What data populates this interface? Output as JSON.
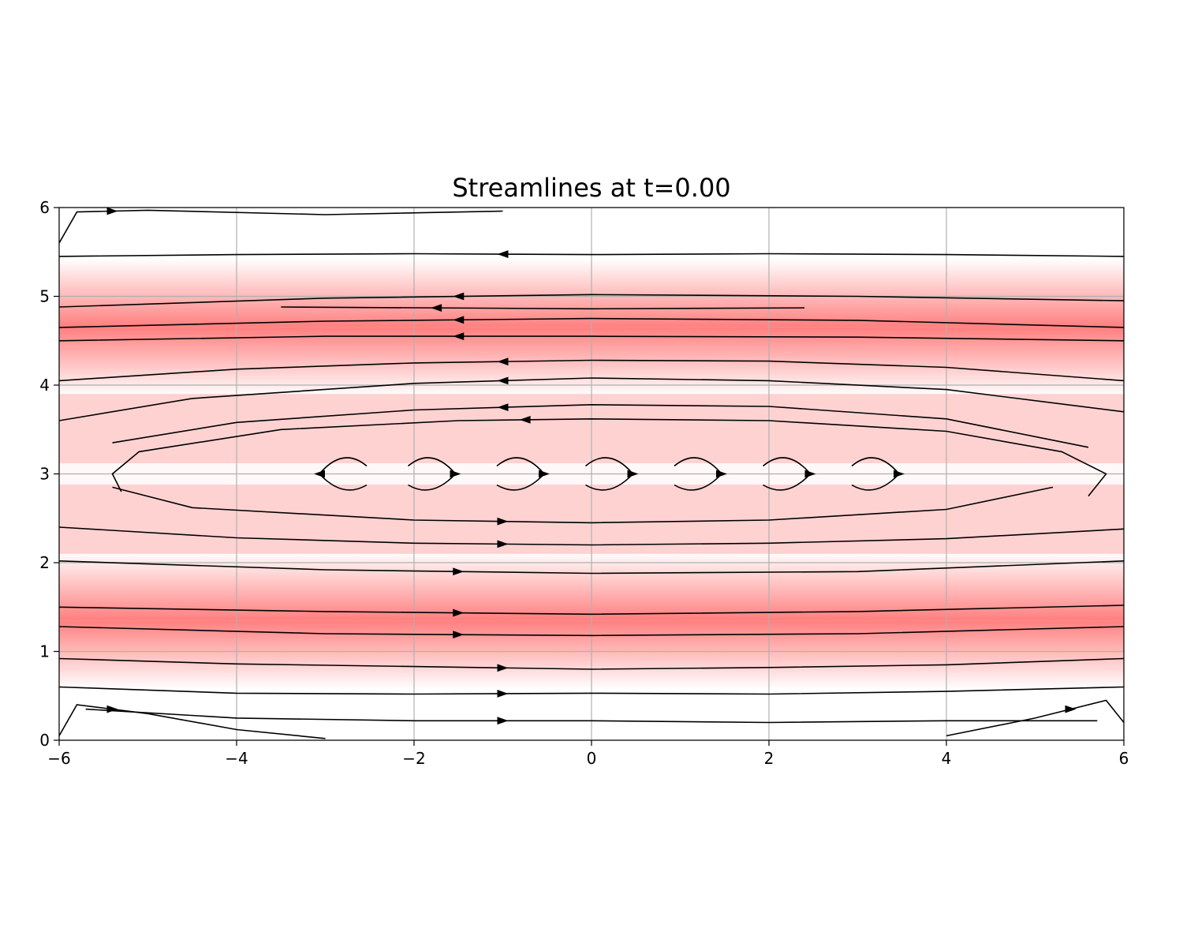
{
  "chart_data": {
    "type": "streamplot",
    "title": "Streamlines at t=0.00",
    "xlabel": "",
    "ylabel": "",
    "xlim": [
      -6,
      6
    ],
    "ylim": [
      0,
      6
    ],
    "grid": true,
    "x_ticks": [
      -6,
      -4,
      -2,
      0,
      2,
      4,
      6
    ],
    "y_ticks": [
      0,
      1,
      2,
      3,
      4,
      5,
      6
    ],
    "x_tick_labels": [
      "−6",
      "−4",
      "−2",
      "0",
      "2",
      "4",
      "6"
    ],
    "y_tick_labels": [
      "0",
      "1",
      "2",
      "3",
      "4",
      "5",
      "6"
    ],
    "speed_colormap": {
      "low": "#ffffff",
      "high": "#ff7f7f"
    },
    "line_color": "#000000",
    "streamlines": [
      {
        "points": [
          [
            -6,
            5.45
          ],
          [
            -4,
            5.47
          ],
          [
            -2,
            5.48
          ],
          [
            0,
            5.47
          ],
          [
            2,
            5.48
          ],
          [
            4,
            5.47
          ],
          [
            6,
            5.45
          ]
        ],
        "direction": "left"
      },
      {
        "points": [
          [
            -6,
            4.88
          ],
          [
            -3,
            4.98
          ],
          [
            0,
            5.02
          ],
          [
            3,
            5.0
          ],
          [
            6,
            4.95
          ]
        ],
        "direction": "left"
      },
      {
        "points": [
          [
            -3.5,
            4.88
          ],
          [
            0,
            4.86
          ],
          [
            2.4,
            4.87
          ]
        ],
        "direction": "left"
      },
      {
        "points": [
          [
            -6,
            4.65
          ],
          [
            -3,
            4.72
          ],
          [
            0,
            4.75
          ],
          [
            3,
            4.73
          ],
          [
            6,
            4.65
          ]
        ],
        "direction": "left"
      },
      {
        "points": [
          [
            -6,
            4.5
          ],
          [
            -3,
            4.55
          ],
          [
            0,
            4.55
          ],
          [
            3,
            4.54
          ],
          [
            6,
            4.5
          ]
        ],
        "direction": "left"
      },
      {
        "points": [
          [
            -6,
            4.05
          ],
          [
            -4,
            4.18
          ],
          [
            -2,
            4.25
          ],
          [
            0,
            4.28
          ],
          [
            2,
            4.27
          ],
          [
            4,
            4.2
          ],
          [
            6,
            4.05
          ]
        ],
        "direction": "left"
      },
      {
        "points": [
          [
            -6,
            3.6
          ],
          [
            -4.5,
            3.85
          ],
          [
            -2,
            4.02
          ],
          [
            0,
            4.08
          ],
          [
            2,
            4.05
          ],
          [
            4,
            3.95
          ],
          [
            6,
            3.7
          ]
        ],
        "direction": "left"
      },
      {
        "points": [
          [
            -5.4,
            3.35
          ],
          [
            -4,
            3.58
          ],
          [
            -2,
            3.72
          ],
          [
            0,
            3.78
          ],
          [
            2,
            3.76
          ],
          [
            4,
            3.62
          ],
          [
            5.6,
            3.3
          ]
        ],
        "direction": "left"
      },
      {
        "points": [
          [
            -5.3,
            2.8
          ],
          [
            -5.4,
            3.0
          ],
          [
            -5.1,
            3.25
          ],
          [
            -3.5,
            3.5
          ],
          [
            -1.5,
            3.6
          ],
          [
            0,
            3.62
          ],
          [
            2,
            3.6
          ],
          [
            4,
            3.48
          ],
          [
            5.3,
            3.25
          ],
          [
            5.8,
            3.0
          ],
          [
            5.6,
            2.75
          ]
        ],
        "direction": "left"
      },
      {
        "points": [
          [
            -5.4,
            2.85
          ],
          [
            -4.5,
            2.62
          ],
          [
            -2,
            2.48
          ],
          [
            0,
            2.45
          ],
          [
            2,
            2.48
          ],
          [
            4,
            2.6
          ],
          [
            5.2,
            2.85
          ]
        ],
        "direction": "right"
      },
      {
        "points": [
          [
            -6,
            2.4
          ],
          [
            -4,
            2.28
          ],
          [
            -2,
            2.22
          ],
          [
            0,
            2.2
          ],
          [
            2,
            2.22
          ],
          [
            4,
            2.27
          ],
          [
            6,
            2.38
          ]
        ],
        "direction": "right"
      },
      {
        "points": [
          [
            -6,
            2.02
          ],
          [
            -3,
            1.92
          ],
          [
            0,
            1.88
          ],
          [
            3,
            1.9
          ],
          [
            6,
            2.02
          ]
        ],
        "direction": "right"
      },
      {
        "points": [
          [
            -6,
            1.5
          ],
          [
            -3,
            1.45
          ],
          [
            0,
            1.42
          ],
          [
            3,
            1.45
          ],
          [
            6,
            1.52
          ]
        ],
        "direction": "right"
      },
      {
        "points": [
          [
            -6,
            1.28
          ],
          [
            -3,
            1.2
          ],
          [
            0,
            1.18
          ],
          [
            3,
            1.2
          ],
          [
            6,
            1.28
          ]
        ],
        "direction": "right"
      },
      {
        "points": [
          [
            -6,
            0.92
          ],
          [
            -4,
            0.86
          ],
          [
            -2,
            0.83
          ],
          [
            0,
            0.8
          ],
          [
            2,
            0.82
          ],
          [
            4,
            0.85
          ],
          [
            6,
            0.92
          ]
        ],
        "direction": "right"
      },
      {
        "points": [
          [
            -6,
            0.6
          ],
          [
            -4,
            0.53
          ],
          [
            -2,
            0.52
          ],
          [
            0,
            0.53
          ],
          [
            2,
            0.52
          ],
          [
            4,
            0.55
          ],
          [
            6,
            0.6
          ]
        ],
        "direction": "right"
      },
      {
        "points": [
          [
            -5.7,
            0.35
          ],
          [
            -4,
            0.25
          ],
          [
            -2,
            0.22
          ],
          [
            0,
            0.22
          ],
          [
            2,
            0.2
          ],
          [
            4,
            0.22
          ],
          [
            5.7,
            0.22
          ]
        ],
        "direction": "right"
      },
      {
        "points": [
          [
            -6,
            5.6
          ],
          [
            -5.8,
            5.95
          ],
          [
            -5,
            5.97
          ],
          [
            -3,
            5.92
          ],
          [
            -1,
            5.96
          ]
        ],
        "direction": "right"
      },
      {
        "points": [
          [
            -6,
            0.05
          ],
          [
            -5.8,
            0.4
          ],
          [
            -5,
            0.3
          ],
          [
            -4,
            0.12
          ],
          [
            -3,
            0.02
          ]
        ],
        "direction": "right"
      },
      {
        "points": [
          [
            4,
            0.05
          ],
          [
            5,
            0.25
          ],
          [
            5.8,
            0.45
          ],
          [
            6,
            0.2
          ]
        ],
        "direction": "right"
      }
    ],
    "vortices": [
      {
        "center": [
          -2.8,
          3.0
        ],
        "direction": "ccw"
      },
      {
        "center": [
          -1.8,
          3.0
        ],
        "direction": "cw"
      },
      {
        "center": [
          -0.8,
          3.0
        ],
        "direction": "cw"
      },
      {
        "center": [
          0.2,
          3.0
        ],
        "direction": "cw"
      },
      {
        "center": [
          1.2,
          3.0
        ],
        "direction": "cw"
      },
      {
        "center": [
          2.2,
          3.0
        ],
        "direction": "cw"
      },
      {
        "center": [
          3.2,
          3.0
        ],
        "direction": "cw"
      }
    ]
  }
}
